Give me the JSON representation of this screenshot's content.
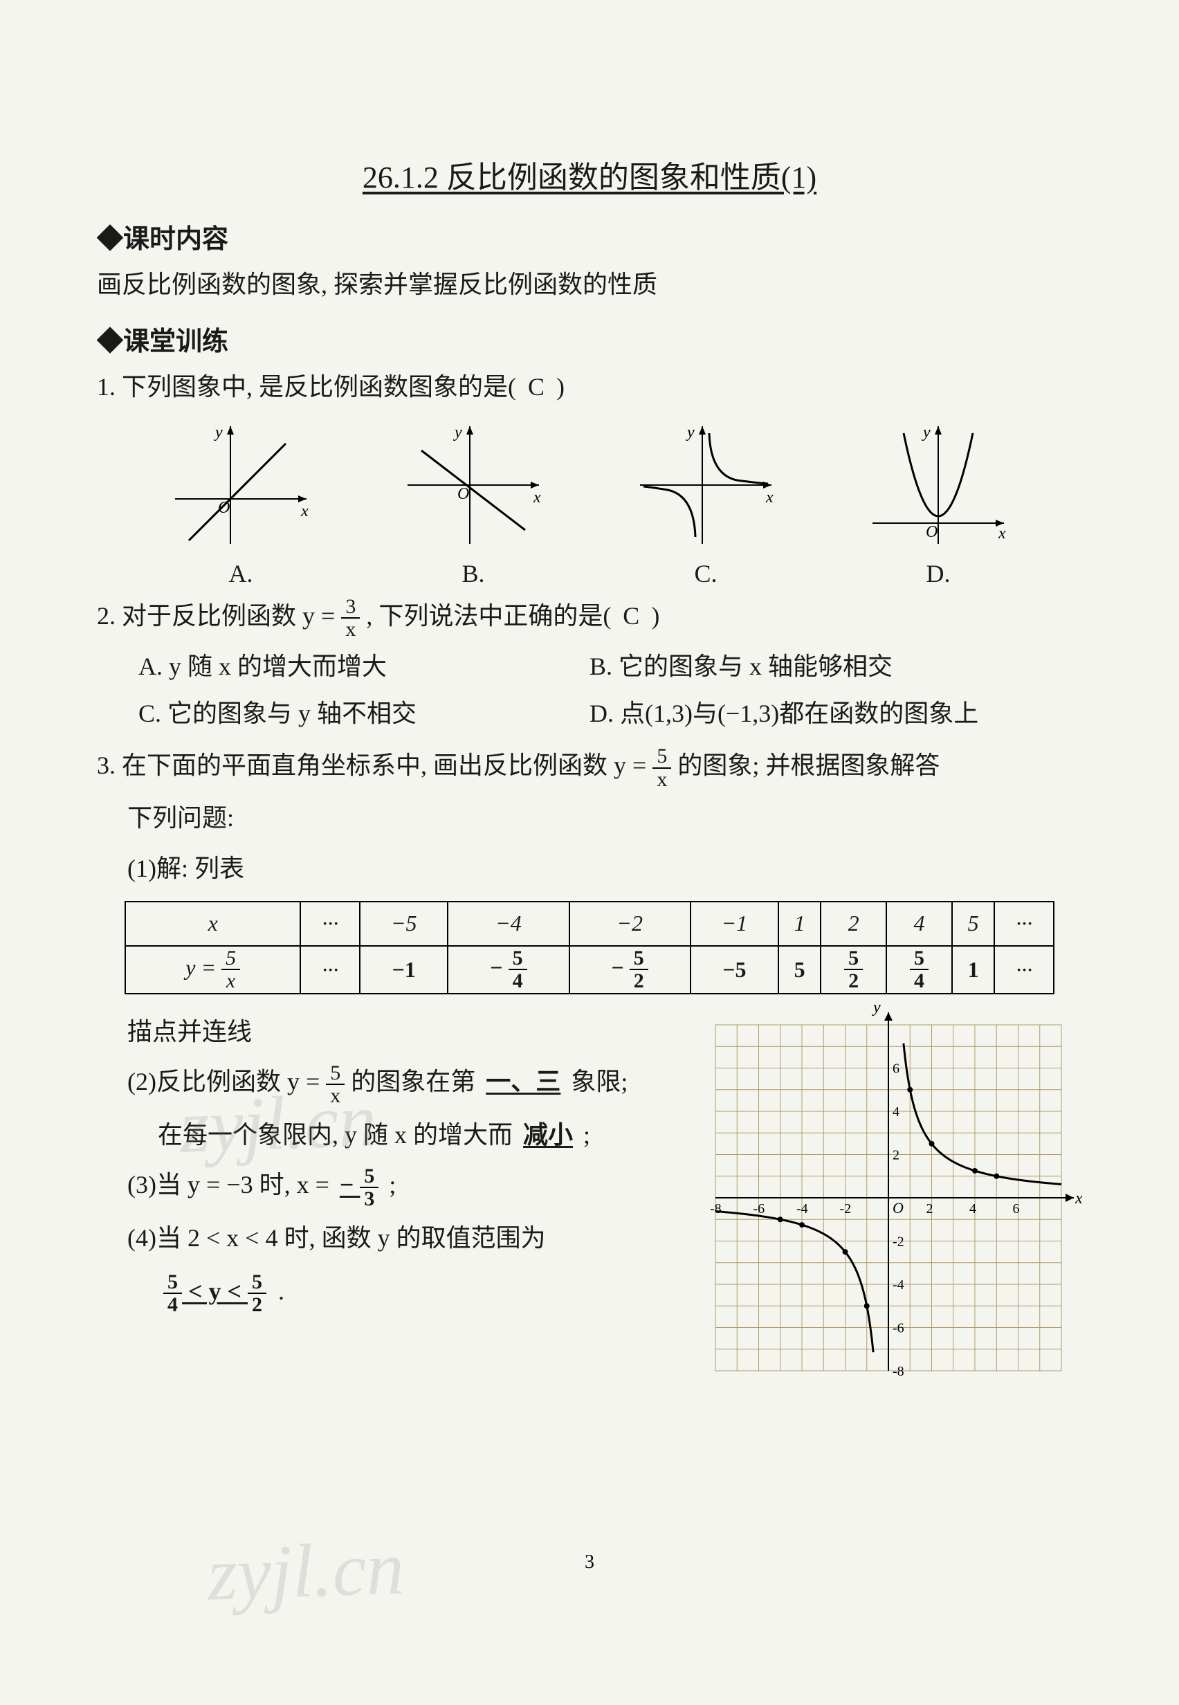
{
  "title": "26.1.2  反比例函数的图象和性质(1)",
  "section1": "◆课时内容",
  "para1": "画反比例函数的图象, 探索并掌握反比例函数的性质",
  "section2": "◆课堂训练",
  "q1": {
    "stem_pre": "1. 下列图象中, 是反比例函数图象的是(  ",
    "answer": "C",
    "stem_post": "  )",
    "labels": [
      "A.",
      "B.",
      "C.",
      "D."
    ]
  },
  "q2": {
    "stem_pre": "2. 对于反比例函数 y = ",
    "frac_num": "3",
    "frac_den": "x",
    "stem_mid": " , 下列说法中正确的是(  ",
    "answer": "C",
    "stem_post": "  )",
    "optA": "A. y 随 x 的增大而增大",
    "optB": "B. 它的图象与 x 轴能够相交",
    "optC": "C. 它的图象与 y 轴不相交",
    "optD": "D. 点(1,3)与(−1,3)都在函数的图象上"
  },
  "q3": {
    "stem_pre": "3. 在下面的平面直角坐标系中, 画出反比例函数 y = ",
    "frac_num": "5",
    "frac_den": "x",
    "stem_post": " 的图象;  并根据图象解答",
    "line2": "下列问题:",
    "sub1": "(1)解: 列表",
    "table": {
      "row1": [
        "x",
        "···",
        "−5",
        "−4",
        "−2",
        "−1",
        "1",
        "2",
        "4",
        "5",
        "···"
      ],
      "row2_hdr_num": "5",
      "row2_hdr_den": "x",
      "row2_vals": [
        "···",
        "−1",
        "-5/4",
        "-5/2",
        "−5",
        "5",
        "5/2",
        "5/4",
        "1",
        "···"
      ],
      "row2_fracs": {
        "2": {
          "num": "5",
          "den": "4",
          "neg": true,
          "bold": true
        },
        "3": {
          "num": "5",
          "den": "2",
          "neg": true,
          "bold": true
        },
        "6": {
          "num": "5",
          "den": "2",
          "neg": false,
          "bold": true
        },
        "7": {
          "num": "5",
          "den": "4",
          "neg": false,
          "bold": true
        }
      },
      "bold_cols": [
        2,
        3,
        4,
        5,
        6,
        7,
        8,
        9
      ]
    },
    "desc_line": "描点并连线",
    "sub2_pre": "(2)反比例函数 y = ",
    "sub2_frac_num": "5",
    "sub2_frac_den": "x",
    "sub2_mid": " 的图象在第 ",
    "sub2_ans1": "一、三",
    "sub2_post1": " 象限;",
    "sub2_line2_pre": "在每一个象限内, y 随 x 的增大而 ",
    "sub2_ans2": "减小",
    "sub2_line2_post": " ;",
    "sub3_pre": "(3)当 y = −3 时,  x = ",
    "sub3_ans_neg": "− ",
    "sub3_ans_num": "5",
    "sub3_ans_den": "3",
    "sub3_post": " ;",
    "sub4": "(4)当 2 < x < 4 时,  函数 y 的取值范围为",
    "sub4_ans_a_num": "5",
    "sub4_ans_a_den": "4",
    "sub4_ans_mid": " < y < ",
    "sub4_ans_b_num": "5",
    "sub4_ans_b_den": "2",
    "sub4_ans_post": " ."
  },
  "graph5": {
    "xmin": -8,
    "xmax": 8,
    "ymin": -8,
    "ymax": 8,
    "grid_color": "#b09a6a",
    "curve_color": "#000000",
    "xlabel": "x",
    "ylabel": "y",
    "origin": "O",
    "ticks": [
      -8,
      -6,
      -4,
      -2,
      2,
      4,
      6
    ]
  },
  "small_axes": {
    "xlabel": "x",
    "ylabel": "y",
    "origin": "O"
  },
  "page_number": "3",
  "watermark": "zyjl.cn"
}
